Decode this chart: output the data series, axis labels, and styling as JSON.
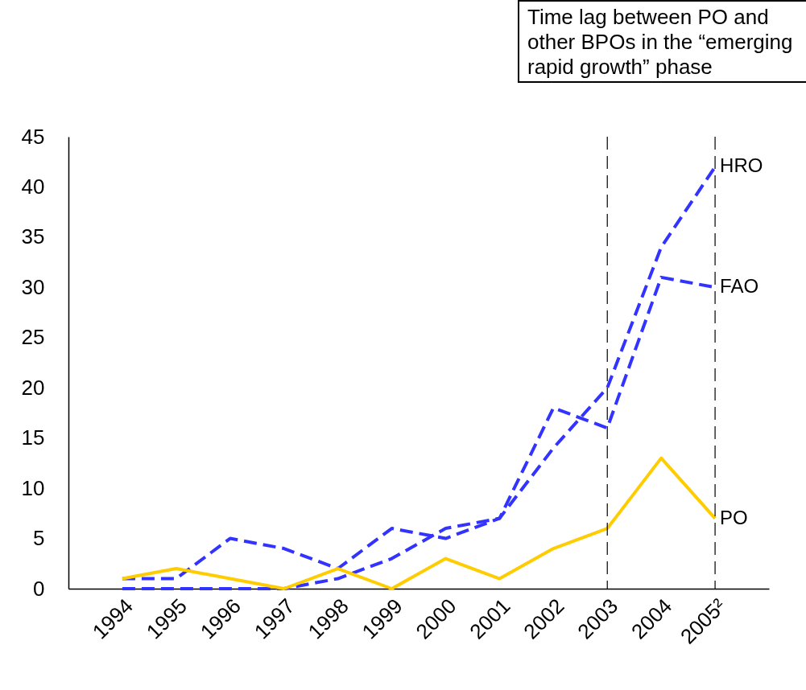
{
  "chart_data": {
    "type": "line",
    "categories": [
      "1994",
      "1995",
      "1996",
      "1997",
      "1998",
      "1999",
      "2000",
      "2001",
      "2002",
      "2003",
      "2004",
      "2005²"
    ],
    "series": [
      {
        "name": "HRO",
        "color": "#3333ff",
        "line_style": "dashed",
        "values": [
          0,
          0,
          0,
          0,
          1,
          3,
          6,
          7,
          14,
          20,
          34,
          42
        ]
      },
      {
        "name": "FAO",
        "color": "#3333ff",
        "line_style": "dashed",
        "values": [
          1,
          1,
          5,
          4,
          2,
          6,
          5,
          7,
          18,
          16,
          31,
          30
        ]
      },
      {
        "name": "PO",
        "color": "#ffcc00",
        "line_style": "solid",
        "values": [
          1,
          2,
          1,
          0,
          2,
          0,
          3,
          1,
          4,
          6,
          13,
          7
        ]
      }
    ],
    "ylim": [
      0,
      45
    ],
    "yticks": [
      0,
      5,
      10,
      15,
      20,
      25,
      30,
      35,
      40,
      45
    ],
    "grid": false,
    "legend": false,
    "marker": "none",
    "ref_lines": [
      {
        "axis": "x",
        "value": "2003",
        "color": "#000000",
        "line_style": "dashed"
      },
      {
        "axis": "x",
        "value": "2005²",
        "color": "#000000",
        "line_style": "dashed"
      }
    ],
    "annotations": [
      "Time lag between PO and other BPOs in the “emerging rapid growth” phase"
    ]
  }
}
